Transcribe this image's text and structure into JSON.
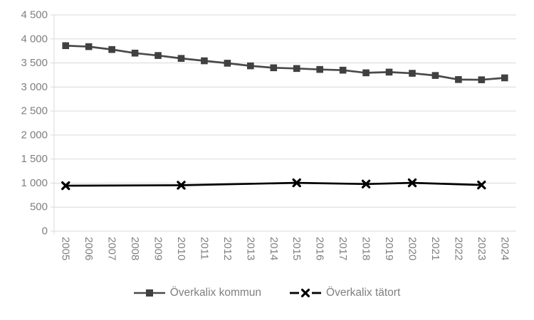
{
  "chart_data": {
    "type": "line",
    "title": "",
    "xlabel": "",
    "ylabel": "",
    "ylim": [
      0,
      4500
    ],
    "ytick_step": 500,
    "ytick_labels": [
      "0",
      "500",
      "1 000",
      "1 500",
      "2 000",
      "2 500",
      "3 000",
      "3 500",
      "4 000",
      "4 500"
    ],
    "categories": [
      "2005",
      "2006",
      "2007",
      "2008",
      "2009",
      "2010",
      "2011",
      "2012",
      "2013",
      "2014",
      "2015",
      "2016",
      "2017",
      "2018",
      "2019",
      "2020",
      "2021",
      "2022",
      "2023",
      "2024"
    ],
    "grid": true,
    "legend_position": "bottom",
    "series": [
      {
        "name": "Överkalix kommun",
        "marker": "square",
        "line_color": "#4a4a4a",
        "marker_color": "#404040",
        "years": [
          2005,
          2006,
          2007,
          2008,
          2009,
          2010,
          2011,
          2012,
          2013,
          2014,
          2015,
          2016,
          2017,
          2018,
          2019,
          2020,
          2021,
          2022,
          2023,
          2024
        ],
        "values": [
          3860,
          3840,
          3780,
          3705,
          3655,
          3595,
          3545,
          3495,
          3440,
          3400,
          3385,
          3365,
          3350,
          3295,
          3310,
          3285,
          3240,
          3155,
          3150,
          3190
        ]
      },
      {
        "name": "Överkalix tätort",
        "marker": "x",
        "line_color": "#000000",
        "marker_color": "#000000",
        "years": [
          2005,
          2010,
          2015,
          2018,
          2020,
          2023
        ],
        "values": [
          945,
          955,
          1005,
          980,
          1005,
          960
        ]
      }
    ]
  },
  "colors": {
    "background": "#ffffff",
    "gridline": "#d9d9d9",
    "axis_line": "#d9d9d9",
    "axis_label": "#7f7f7f",
    "legend_text": "#7f7f7f"
  }
}
